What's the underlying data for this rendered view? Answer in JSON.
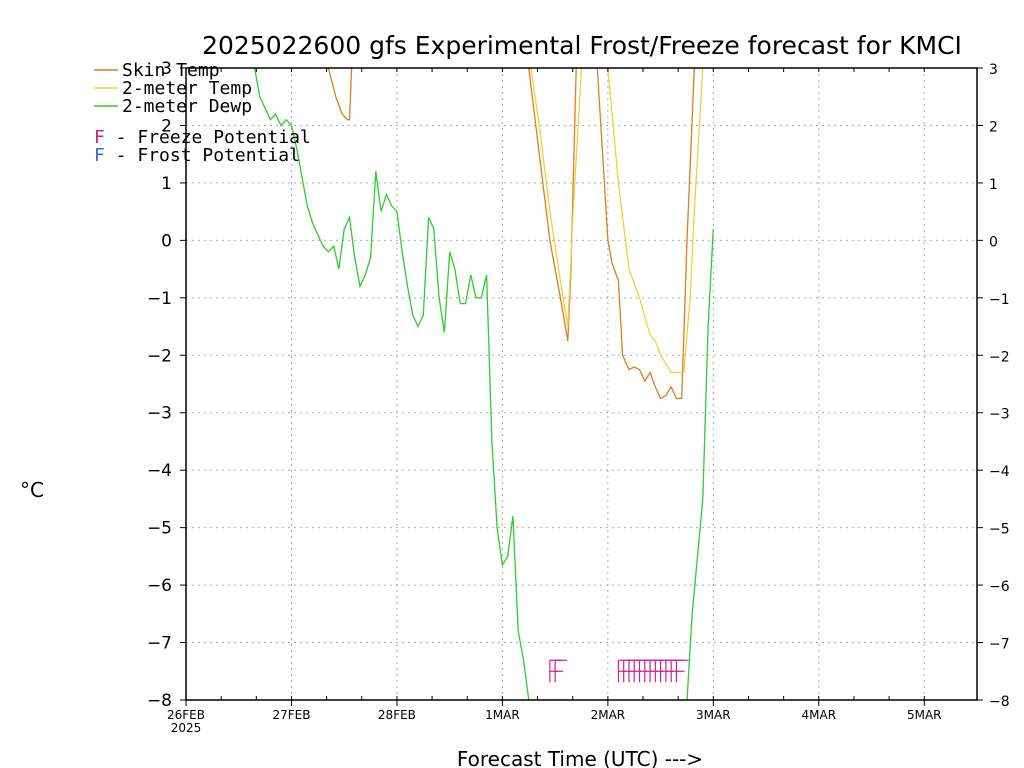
{
  "chart_data": {
    "type": "line",
    "title": "2025022600 gfs Experimental Frost/Freeze forecast for KMCI",
    "xlabel": "Forecast Time (UTC) --->",
    "ylabel": "°C",
    "xlim": [
      0,
      7.5
    ],
    "ylim": [
      -8,
      3
    ],
    "yticks": [
      3,
      2,
      1,
      0,
      -1,
      -2,
      -3,
      -4,
      -5,
      -6,
      -7,
      -8
    ],
    "ytick_labels_left": [
      "3",
      "2",
      "1",
      "0",
      "−1",
      "−2",
      "−3",
      "−4",
      "−5",
      "−6",
      "−7",
      "−8"
    ],
    "ytick_labels_right": [
      "3",
      "2",
      "1",
      "0",
      "−1",
      "−2",
      "−3",
      "−4",
      "−5",
      "−6",
      "−7",
      "−8"
    ],
    "xticks": [
      0,
      1,
      2,
      3,
      4,
      5,
      6,
      7
    ],
    "xtick_labels": [
      "26FEB",
      "27FEB",
      "28FEB",
      "1MAR",
      "2MAR",
      "3MAR",
      "4MAR",
      "5MAR"
    ],
    "x_year_label": "2025",
    "grid": true,
    "legend_position": "top-left",
    "series": [
      {
        "name": "Skin Temp",
        "color": "#e07b20",
        "x": [
          1.35,
          1.42,
          1.48,
          1.53,
          1.55,
          1.57,
          3.25,
          3.35,
          3.45,
          3.5,
          3.55,
          3.62,
          3.65,
          3.7,
          3.9,
          4.0,
          4.04,
          4.1,
          4.14,
          4.2,
          4.25,
          4.3,
          4.35,
          4.4,
          4.45,
          4.5,
          4.55,
          4.6,
          4.65,
          4.7,
          4.75,
          4.82,
          4.85,
          4.87,
          4.9,
          4.93
        ],
        "y": [
          3.0,
          2.5,
          2.2,
          2.1,
          2.1,
          3.0,
          3.0,
          1.5,
          0.0,
          -0.5,
          -1.0,
          -1.75,
          -0.5,
          3.0,
          3.0,
          0.0,
          -0.4,
          -0.7,
          -2.0,
          -2.25,
          -2.2,
          -2.25,
          -2.45,
          -2.3,
          -2.55,
          -2.75,
          -2.7,
          -2.55,
          -2.75,
          -2.75,
          0.0,
          3.0,
          3.0,
          3.0,
          3.0,
          3.0
        ]
      },
      {
        "name": "2-meter Temp",
        "color": "#f0d040",
        "x": [
          3.27,
          3.35,
          3.45,
          3.55,
          3.62,
          3.67,
          3.75,
          4.0,
          4.1,
          4.2,
          4.3,
          4.4,
          4.45,
          4.5,
          4.55,
          4.6,
          4.65,
          4.72,
          4.78,
          4.82,
          4.9
        ],
        "y": [
          3.0,
          2.0,
          0.5,
          -0.7,
          -1.5,
          0.5,
          3.0,
          3.0,
          1.0,
          -0.5,
          -1.0,
          -1.65,
          -1.75,
          -2.0,
          -2.15,
          -2.3,
          -2.3,
          -2.3,
          -1.0,
          0.5,
          3.0
        ]
      },
      {
        "name": "2-meter Dewp",
        "color": "#2ecc2e",
        "x": [
          0.65,
          0.7,
          0.75,
          0.8,
          0.85,
          0.9,
          0.95,
          1.0,
          1.05,
          1.1,
          1.15,
          1.2,
          1.25,
          1.3,
          1.35,
          1.4,
          1.45,
          1.5,
          1.55,
          1.6,
          1.65,
          1.7,
          1.75,
          1.8,
          1.85,
          1.9,
          1.95,
          2.0,
          2.05,
          2.1,
          2.15,
          2.2,
          2.25,
          2.3,
          2.35,
          2.4,
          2.45,
          2.5,
          2.55,
          2.6,
          2.65,
          2.7,
          2.75,
          2.8,
          2.85,
          2.9,
          2.95,
          3.0,
          3.05,
          3.1,
          3.15,
          3.2,
          3.25,
          3.3,
          3.35,
          3.4,
          3.45,
          3.5,
          3.55,
          3.6,
          3.63,
          4.75,
          4.8,
          4.85,
          4.9,
          4.95,
          5.0
        ],
        "y": [
          3.0,
          2.5,
          2.3,
          2.1,
          2.2,
          2.0,
          2.1,
          2.0,
          1.6,
          1.1,
          0.6,
          0.3,
          0.1,
          -0.1,
          -0.2,
          -0.1,
          -0.5,
          0.2,
          0.4,
          -0.3,
          -0.8,
          -0.6,
          -0.3,
          1.2,
          0.5,
          0.8,
          0.6,
          0.5,
          -0.2,
          -0.8,
          -1.3,
          -1.5,
          -1.3,
          0.4,
          0.2,
          -1.0,
          -1.6,
          -0.2,
          -0.5,
          -1.1,
          -1.1,
          -0.6,
          -1.0,
          -1.0,
          -0.6,
          -3.5,
          -5.0,
          -5.65,
          -5.5,
          -4.8,
          -6.8,
          -7.3,
          -8.0,
          -8.0,
          -8.0,
          -8.0,
          -8.0,
          -8.0,
          -8.0,
          -8.0,
          -8.0,
          -8.0,
          -6.5,
          -5.5,
          -4.5,
          -1.5,
          0.2
        ]
      }
    ],
    "potential_markers": [
      {
        "name": "Freeze Potential",
        "symbol": "F",
        "color": "#d0208a",
        "x": [
          3.45,
          3.5,
          4.1,
          4.15,
          4.2,
          4.25,
          4.3,
          4.35,
          4.4,
          4.45,
          4.5,
          4.55,
          4.6,
          4.65
        ],
        "level": -7.5
      },
      {
        "name": "Frost Potential",
        "symbol": "F",
        "color": "#4060e0",
        "x": [],
        "level": -7.5
      }
    ]
  },
  "legend": [
    {
      "label": "Skin Temp",
      "color": "#e07b20"
    },
    {
      "label": "2-meter Temp",
      "color": "#f0d040"
    },
    {
      "label": "2-meter Dewp",
      "color": "#2ecc2e"
    }
  ],
  "potential_legend": [
    {
      "letter": "F",
      "label": " - Freeze Potential",
      "color": "#d0208a"
    },
    {
      "letter": "F",
      "label": " - Frost Potential",
      "color": "#4060e0"
    }
  ]
}
